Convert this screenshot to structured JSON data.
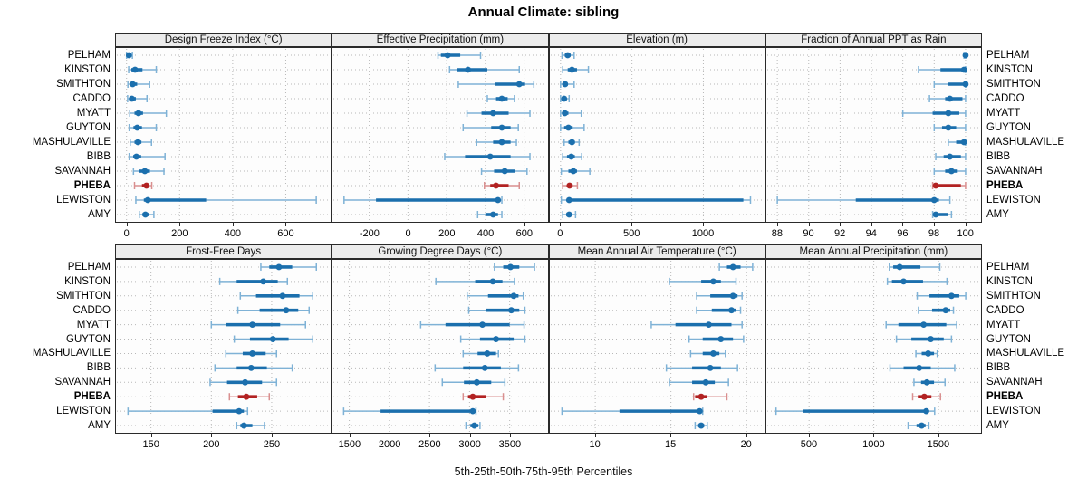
{
  "colors": {
    "blue": "#1b6fad",
    "blue_light": "#7fb2d6",
    "red": "#b22222",
    "red_light": "#d98f8f",
    "strip_bg": "#ececec",
    "grid": "#b8b8b8",
    "border": "#2a2a2a"
  },
  "chart_data": {
    "type": "dotplot-intervals",
    "title": "Annual Climate: sibling",
    "caption": "5th-25th-50th-75th-95th Percentiles",
    "layout": "2 rows x 4 columns of panels, shared y categories",
    "percentiles": [
      5,
      25,
      50,
      75,
      95
    ],
    "locations": [
      "PELHAM",
      "KINSTON",
      "SMITHTON",
      "CADDO",
      "MYATT",
      "GUYTON",
      "MASHULAVILLE",
      "BIBB",
      "SAVANNAH",
      "PHEBA",
      "LEWISTON",
      "AMY"
    ],
    "highlight": "PHEBA",
    "note": "values[j] = [p5,p25,p50,p75,p95] for locations[j]; thin line+caps = 5th-95th, thick bar = 25th-75th, dot = median",
    "panels": [
      {
        "title": "Design Freeze Index (°C)",
        "xlim": [
          -40,
          770
        ],
        "xticks": [
          0,
          200,
          400,
          600
        ],
        "values": [
          [
            0,
            4,
            9,
            15,
            22
          ],
          [
            8,
            18,
            32,
            60,
            112
          ],
          [
            5,
            14,
            23,
            40,
            87
          ],
          [
            4,
            12,
            20,
            35,
            77
          ],
          [
            12,
            30,
            45,
            62,
            150
          ],
          [
            10,
            26,
            40,
            58,
            112
          ],
          [
            14,
            30,
            43,
            56,
            94
          ],
          [
            10,
            25,
            37,
            55,
            145
          ],
          [
            26,
            48,
            69,
            88,
            141
          ],
          [
            30,
            58,
            75,
            83,
            95
          ],
          [
            35,
            65,
            80,
            300,
            715
          ],
          [
            48,
            60,
            71,
            85,
            103
          ]
        ]
      },
      {
        "title": "Effective Precipitation (mm)",
        "xlim": [
          -390,
          720
        ],
        "xticks": [
          -200,
          0,
          200,
          400,
          600
        ],
        "values": [
          [
            155,
            170,
            205,
            270,
            375
          ],
          [
            215,
            255,
            310,
            410,
            575
          ],
          [
            260,
            450,
            575,
            605,
            650
          ],
          [
            410,
            455,
            485,
            515,
            550
          ],
          [
            305,
            380,
            440,
            520,
            630
          ],
          [
            285,
            430,
            485,
            530,
            570
          ],
          [
            355,
            440,
            485,
            530,
            560
          ],
          [
            190,
            295,
            425,
            530,
            630
          ],
          [
            380,
            445,
            500,
            555,
            615
          ],
          [
            395,
            425,
            455,
            520,
            575
          ],
          [
            -330,
            -165,
            465,
            475,
            485
          ],
          [
            360,
            400,
            440,
            465,
            485
          ]
        ]
      },
      {
        "title": "Elevation (m)",
        "xlim": [
          -75,
          1430
        ],
        "xticks": [
          0,
          500,
          1000
        ],
        "values": [
          [
            10,
            30,
            50,
            70,
            95
          ],
          [
            15,
            50,
            80,
            115,
            195
          ],
          [
            0,
            18,
            32,
            50,
            95
          ],
          [
            0,
            12,
            25,
            38,
            60
          ],
          [
            0,
            15,
            30,
            55,
            145
          ],
          [
            0,
            25,
            55,
            85,
            165
          ],
          [
            25,
            55,
            80,
            100,
            130
          ],
          [
            15,
            45,
            75,
            100,
            148
          ],
          [
            5,
            55,
            90,
            115,
            205
          ],
          [
            15,
            45,
            63,
            85,
            118
          ],
          [
            5,
            45,
            60,
            1280,
            1330
          ],
          [
            15,
            40,
            60,
            80,
            105
          ]
        ]
      },
      {
        "title": "Fraction of Annual PPT as Rain",
        "xlim": [
          87.3,
          101.0
        ],
        "xticks": [
          88,
          90,
          92,
          94,
          96,
          98,
          100
        ],
        "values": [
          [
            99.9,
            100,
            100,
            100,
            100
          ],
          [
            97.0,
            98.4,
            99.9,
            100,
            100
          ],
          [
            98.0,
            98.9,
            100,
            100,
            100
          ],
          [
            97.7,
            98.7,
            99.0,
            99.8,
            100
          ],
          [
            96.0,
            97.9,
            98.9,
            99.6,
            100
          ],
          [
            98.0,
            98.5,
            98.9,
            99.4,
            100
          ],
          [
            98.9,
            99.4,
            99.9,
            100,
            100
          ],
          [
            98.1,
            98.6,
            99.0,
            99.7,
            100
          ],
          [
            98.0,
            98.7,
            99.1,
            99.5,
            100
          ],
          [
            97.9,
            98.0,
            98.1,
            99.7,
            100
          ],
          [
            88.0,
            93.0,
            98.0,
            98.3,
            99.0
          ],
          [
            97.9,
            98.0,
            98.1,
            98.9,
            99.1
          ]
        ]
      },
      {
        "title": "Frost-Free Days",
        "xlim": [
          121,
          299
        ],
        "xticks": [
          150,
          200,
          250
        ],
        "values": [
          [
            241,
            248,
            256,
            267,
            287
          ],
          [
            207,
            221,
            243,
            255,
            263
          ],
          [
            224,
            237,
            259,
            273,
            284
          ],
          [
            222,
            240,
            262,
            272,
            281
          ],
          [
            200,
            212,
            234,
            257,
            278
          ],
          [
            219,
            232,
            251,
            264,
            284
          ],
          [
            212,
            226,
            234,
            245,
            254
          ],
          [
            203,
            221,
            233,
            246,
            267
          ],
          [
            199,
            213,
            228,
            242,
            254
          ],
          [
            215,
            222,
            229,
            238,
            248
          ],
          [
            131,
            201,
            223,
            227,
            230
          ],
          [
            221,
            224,
            227,
            234,
            244
          ]
        ]
      },
      {
        "title": "Growing Degree Days (°C)",
        "xlim": [
          1290,
          3970
        ],
        "xticks": [
          1500,
          2000,
          2500,
          3000,
          3500
        ],
        "values": [
          [
            3310,
            3420,
            3510,
            3620,
            3810
          ],
          [
            2580,
            3070,
            3290,
            3410,
            3560
          ],
          [
            2970,
            3230,
            3550,
            3610,
            3670
          ],
          [
            2990,
            3200,
            3520,
            3620,
            3690
          ],
          [
            2390,
            2700,
            3160,
            3500,
            3680
          ],
          [
            2890,
            3130,
            3330,
            3550,
            3690
          ],
          [
            2920,
            3100,
            3220,
            3330,
            3360
          ],
          [
            2570,
            2920,
            3190,
            3390,
            3610
          ],
          [
            2660,
            2930,
            3090,
            3270,
            3440
          ],
          [
            2920,
            2980,
            3040,
            3210,
            3420
          ],
          [
            1430,
            1890,
            3040,
            3060,
            3080
          ],
          [
            2955,
            3010,
            3060,
            3110,
            3130
          ]
        ]
      },
      {
        "title": "Mean Annual Air Temperature (°C)",
        "xlim": [
          7.0,
          21.2
        ],
        "xticks": [
          10,
          15,
          20
        ],
        "values": [
          [
            18.2,
            18.7,
            19.1,
            19.6,
            20.4
          ],
          [
            14.9,
            17.0,
            17.8,
            18.3,
            19.3
          ],
          [
            16.7,
            17.6,
            19.1,
            19.4,
            19.7
          ],
          [
            16.7,
            17.7,
            19.0,
            19.3,
            19.6
          ],
          [
            13.7,
            15.3,
            17.5,
            19.0,
            19.7
          ],
          [
            16.2,
            17.1,
            18.3,
            19.1,
            19.8
          ],
          [
            16.3,
            17.1,
            17.8,
            18.2,
            18.6
          ],
          [
            14.7,
            16.4,
            17.6,
            18.3,
            19.4
          ],
          [
            14.9,
            16.4,
            17.3,
            17.9,
            18.8
          ],
          [
            16.5,
            16.6,
            17.0,
            17.4,
            18.7
          ],
          [
            7.8,
            11.6,
            16.9,
            17.0,
            17.1
          ],
          [
            16.6,
            16.8,
            17.0,
            17.2,
            17.4
          ]
        ]
      },
      {
        "title": "Mean Annual Precipitation (mm)",
        "xlim": [
          170,
          1830
        ],
        "xticks": [
          500,
          1000,
          1500
        ],
        "values": [
          [
            1120,
            1150,
            1200,
            1360,
            1510
          ],
          [
            1105,
            1140,
            1230,
            1380,
            1565
          ],
          [
            1335,
            1430,
            1600,
            1660,
            1710
          ],
          [
            1345,
            1450,
            1555,
            1590,
            1615
          ],
          [
            1095,
            1190,
            1385,
            1560,
            1640
          ],
          [
            1175,
            1290,
            1440,
            1540,
            1600
          ],
          [
            1325,
            1370,
            1420,
            1465,
            1490
          ],
          [
            1125,
            1230,
            1350,
            1440,
            1625
          ],
          [
            1310,
            1365,
            1410,
            1465,
            1550
          ],
          [
            1300,
            1340,
            1390,
            1445,
            1515
          ],
          [
            245,
            455,
            1405,
            1420,
            1470
          ],
          [
            1265,
            1330,
            1370,
            1400,
            1425
          ]
        ]
      }
    ]
  }
}
